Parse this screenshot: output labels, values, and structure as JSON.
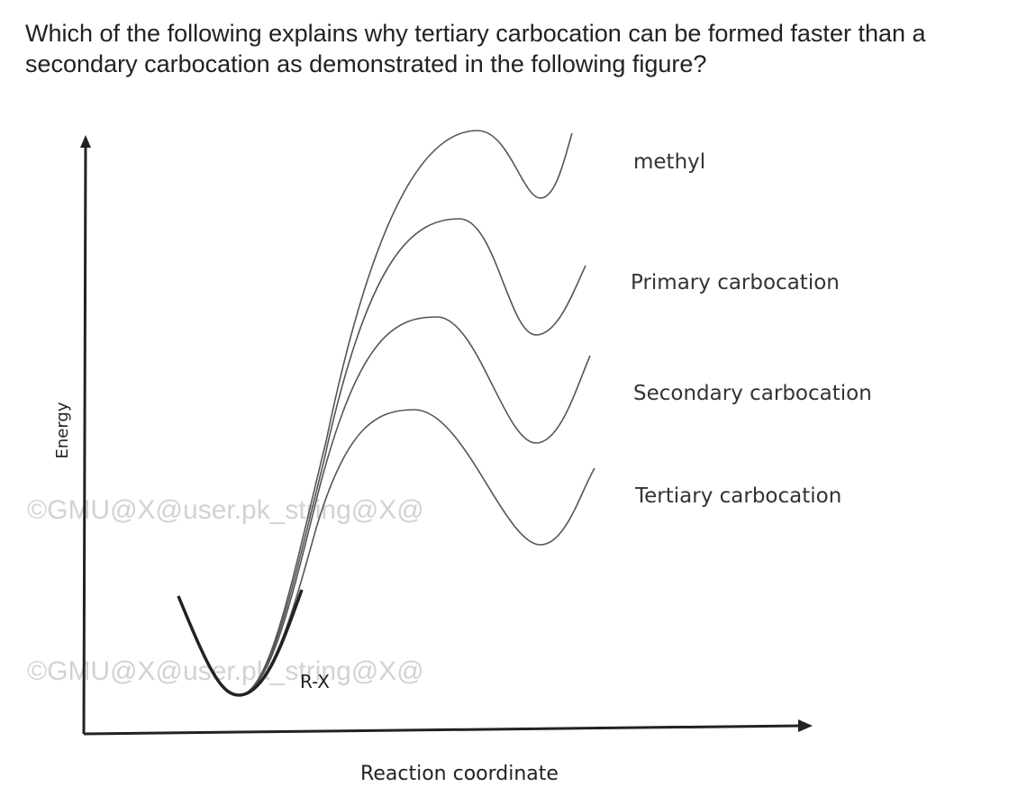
{
  "question": {
    "lines": [
      "Which of the following explains why tertiary carbocation can be formed faster than a",
      "secondary carbocation as demonstrated in the following figure?"
    ]
  },
  "figure": {
    "y_axis_label": "Energy",
    "x_axis_label": "Reaction coordinate",
    "reactant_label": "R-X",
    "curve_labels": [
      "methyl",
      "Primary carbocation",
      "Secondary carbocation",
      "Tertiary carbocation"
    ],
    "watermarks": [
      "©GMU@X@user.pk_string@X@",
      "©GMU@X@user.pk_string@X@"
    ]
  }
}
